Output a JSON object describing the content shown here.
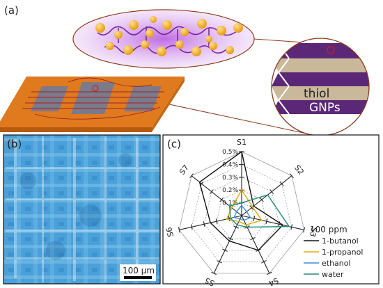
{
  "panel_a": {
    "label": "(a)",
    "layer_labels": {
      "thiol": "thiol",
      "gnps": "GNPs"
    }
  },
  "panel_b": {
    "label": "(b)",
    "scale_bar_label": "100 µm"
  },
  "panel_c": {
    "label": "(c)",
    "legend_title": "100 ppm"
  },
  "colors": {
    "gold_np": "#f2b233",
    "chain": "#7a2a9a",
    "substrate": "#e07a1e",
    "electrode": "#7b7a8a",
    "layer_purple": "#5b2878",
    "layer_tan": "#c9b89a",
    "micro_bg": "#4aa0d8"
  },
  "chart_data": {
    "type": "radar",
    "title": "",
    "axes": [
      "S1",
      "S2",
      "S3",
      "S4",
      "S5",
      "S6",
      "S7"
    ],
    "rlabels": [
      "0.1%",
      "0.2%",
      "0.3%",
      "0.4%",
      "0.5%"
    ],
    "rmax": 0.5,
    "series": [
      {
        "name": "1-butanol",
        "color": "#111111",
        "values": [
          0.5,
          0.12,
          0.33,
          0.3,
          0.22,
          0.25,
          0.42
        ]
      },
      {
        "name": "1-propanol",
        "color": "#e0a800",
        "values": [
          0.2,
          0.11,
          0.16,
          0.08,
          0.05,
          0.12,
          0.1
        ]
      },
      {
        "name": "ethanol",
        "color": "#3a8ee6",
        "values": [
          0.08,
          0.05,
          0.07,
          0.04,
          0.03,
          0.06,
          0.05
        ]
      },
      {
        "name": "water",
        "color": "#1f8a7a",
        "values": [
          0.1,
          0.26,
          0.38,
          0.1,
          0.08,
          0.09,
          0.12
        ]
      }
    ]
  }
}
